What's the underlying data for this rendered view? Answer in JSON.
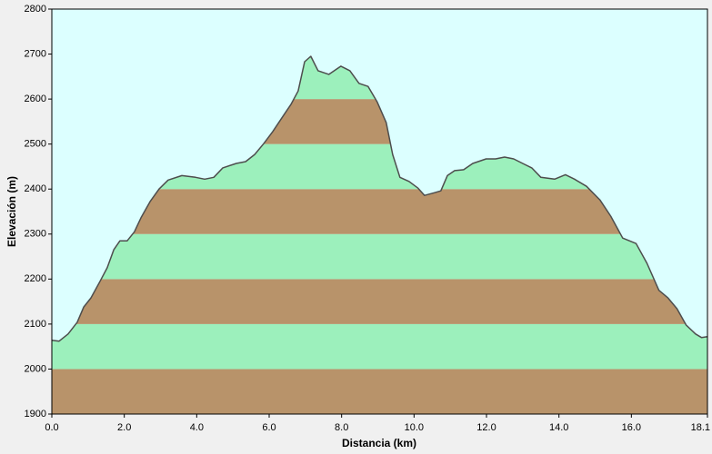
{
  "chart_data": {
    "type": "area",
    "xlabel": "Distancia  (km)",
    "ylabel": "Elevación (m)",
    "x": [
      0,
      0.2,
      0.45,
      0.7,
      0.88,
      1.08,
      1.33,
      1.53,
      1.71,
      1.88,
      2.08,
      2.28,
      2.46,
      2.71,
      2.96,
      3.21,
      3.59,
      3.97,
      4.22,
      4.47,
      4.72,
      5.09,
      5.35,
      5.6,
      5.85,
      6.1,
      6.35,
      6.6,
      6.8,
      6.98,
      7.15,
      7.35,
      7.65,
      7.98,
      8.23,
      8.48,
      8.73,
      8.98,
      9.23,
      9.41,
      9.61,
      9.86,
      10.11,
      10.29,
      10.57,
      10.74,
      10.92,
      11.12,
      11.37,
      11.62,
      11.99,
      12.25,
      12.5,
      12.75,
      13.0,
      13.25,
      13.5,
      13.88,
      14.18,
      14.43,
      14.76,
      15.13,
      15.43,
      15.76,
      16.13,
      16.43,
      16.76,
      17.01,
      17.26,
      17.51,
      17.77,
      17.94,
      18.1
    ],
    "series": [
      {
        "color": "#4d4d4d",
        "values": [
          2064,
          2062,
          2078,
          2104,
          2138,
          2158,
          2195,
          2225,
          2265,
          2285,
          2285,
          2305,
          2336,
          2372,
          2400,
          2420,
          2430,
          2426,
          2422,
          2426,
          2447,
          2457,
          2461,
          2477,
          2501,
          2528,
          2558,
          2588,
          2618,
          2683,
          2695,
          2663,
          2655,
          2673,
          2663,
          2635,
          2628,
          2594,
          2548,
          2477,
          2426,
          2417,
          2402,
          2386,
          2392,
          2396,
          2430,
          2441,
          2443,
          2457,
          2467,
          2467,
          2471,
          2467,
          2457,
          2447,
          2426,
          2422,
          2432,
          2422,
          2406,
          2376,
          2340,
          2291,
          2279,
          2235,
          2175,
          2158,
          2134,
          2098,
          2078,
          2070,
          2072
        ]
      }
    ],
    "band_colors": [
      "#b8936a",
      "#9cf0bc"
    ],
    "background": "#dcffff",
    "xlim": [
      0,
      18.1
    ],
    "xticks": [
      {
        "value": 0,
        "label": "0.0"
      },
      {
        "value": 2,
        "label": "2.0"
      },
      {
        "value": 4,
        "label": "4.0"
      },
      {
        "value": 6,
        "label": "6.0"
      },
      {
        "value": 8,
        "label": "8.0"
      },
      {
        "value": 10,
        "label": "10.0"
      },
      {
        "value": 12,
        "label": "12.0"
      },
      {
        "value": 14,
        "label": "14.0"
      },
      {
        "value": 16,
        "label": "16.0"
      },
      {
        "value": 18.1,
        "label": "18.1"
      }
    ],
    "ylim": [
      1900,
      2800
    ],
    "yticks": [
      1900,
      2000,
      2100,
      2200,
      2300,
      2400,
      2500,
      2600,
      2700,
      2800
    ]
  }
}
